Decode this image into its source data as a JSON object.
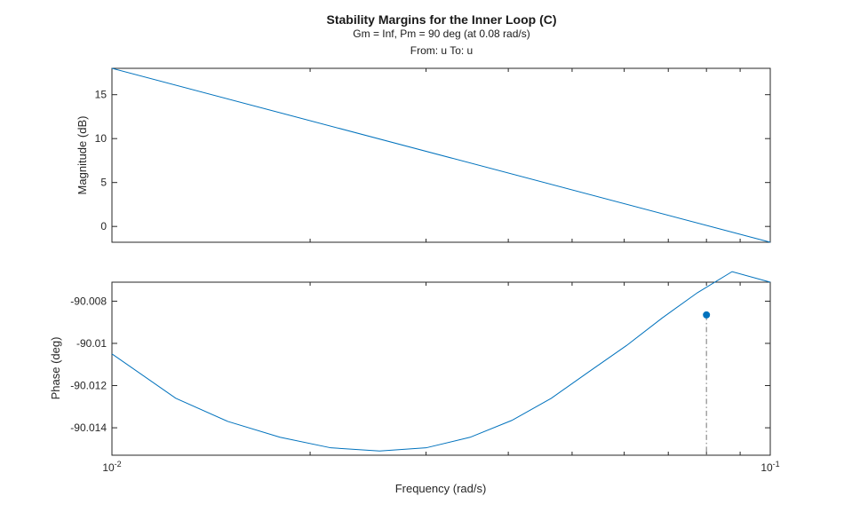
{
  "chart_data": {
    "type": "line",
    "title": "Stability Margins for the Inner Loop (C)",
    "subtitle": "Gm = Inf,  Pm = 90 deg (at 0.08 rad/s)",
    "io_label": "From: u  To: u",
    "xlabel": "Frequency (rad/s)",
    "xscale": "log",
    "xlim": [
      0.01,
      0.1
    ],
    "x_tick_labels": [
      {
        "base": "10",
        "exp": "-2",
        "value": 0.01
      },
      {
        "base": "10",
        "exp": "-1",
        "value": 0.1
      }
    ],
    "subplots": [
      {
        "name": "magnitude",
        "ylabel": "Magnitude (dB)",
        "ylim": [
          -1.8,
          18.0
        ],
        "yticks": [
          {
            "value": 15,
            "label": "15"
          },
          {
            "value": 10,
            "label": "10"
          },
          {
            "value": 5,
            "label": "5"
          },
          {
            "value": 0,
            "label": "0"
          }
        ],
        "series": [
          {
            "x": [
              0.01,
              0.1
            ],
            "y": [
              18.0,
              -1.8
            ]
          }
        ]
      },
      {
        "name": "phase",
        "ylabel": "Phase (deg)",
        "ylim": [
          -90.0153,
          -90.0071
        ],
        "yticks": [
          {
            "value": -90.008,
            "label": "-90.008"
          },
          {
            "value": -90.01,
            "label": "-90.01"
          },
          {
            "value": -90.012,
            "label": "-90.012"
          },
          {
            "value": -90.014,
            "label": "-90.014"
          }
        ],
        "series": [
          {
            "x": [
              0.01,
              0.0125,
              0.015,
              0.018,
              0.0215,
              0.0255,
              0.03,
              0.035,
              0.0405,
              0.0465,
              0.053,
              0.0605,
              0.0685,
              0.0775,
              0.0875,
              0.1
            ],
            "y": [
              -90.0105,
              -90.0126,
              -90.0137,
              -90.01445,
              -90.01495,
              -90.0151,
              -90.01495,
              -90.01445,
              -90.01365,
              -90.0126,
              -90.01135,
              -90.0101,
              -90.0088,
              -90.0076,
              -90.0066,
              -90.0071
            ]
          }
        ],
        "margin_marker": {
          "x": 0.08,
          "y": -90.00865
        }
      }
    ]
  }
}
